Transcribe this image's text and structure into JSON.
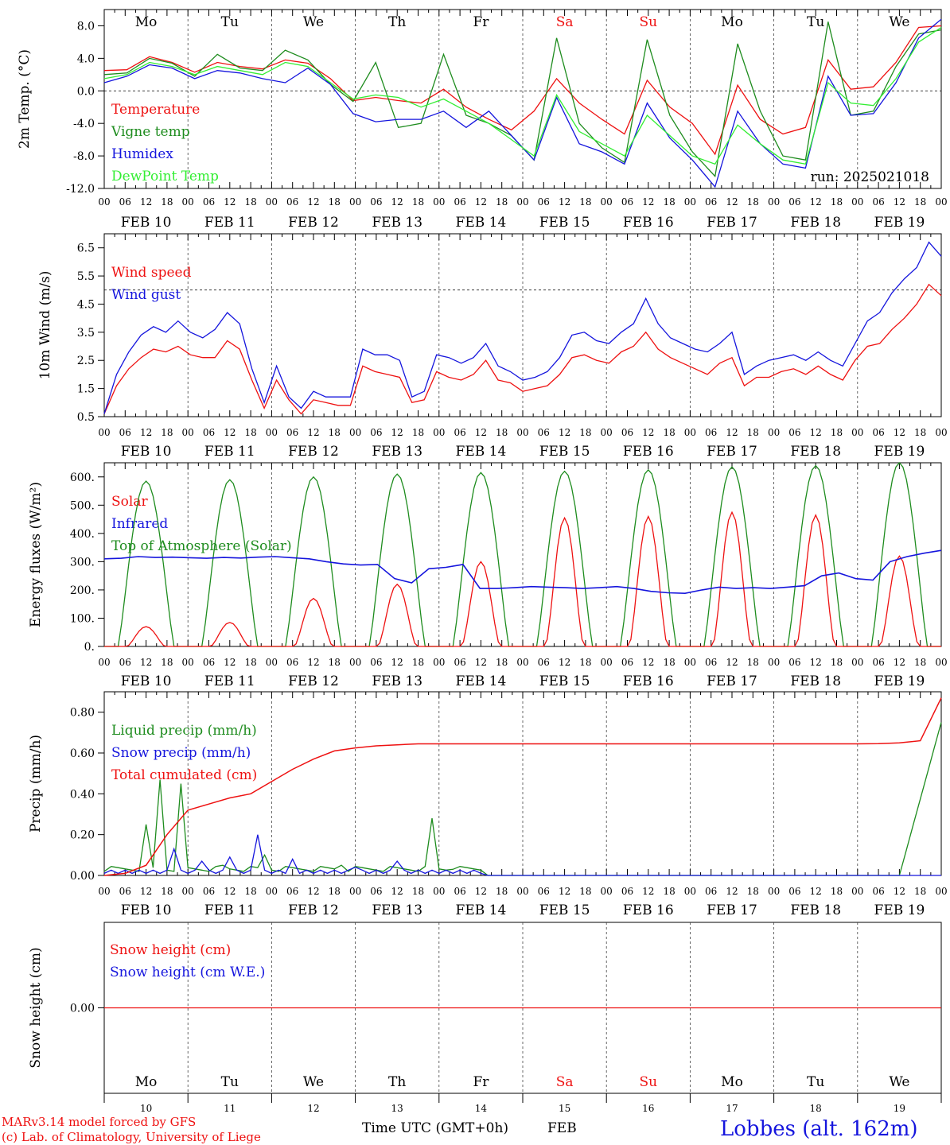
{
  "colors": {
    "red": "#ee1111",
    "darkgreen": "#1e8c1e",
    "blue": "#1515dd",
    "lightgreen": "#33ee33",
    "grid": "#444444"
  },
  "days_top": [
    {
      "label": "Mo",
      "color": "#000000"
    },
    {
      "label": "Tu",
      "color": "#000000"
    },
    {
      "label": "We",
      "color": "#000000"
    },
    {
      "label": "Th",
      "color": "#000000"
    },
    {
      "label": "Fr",
      "color": "#000000"
    },
    {
      "label": "Sa",
      "color": "#ee1111"
    },
    {
      "label": "Su",
      "color": "#ee1111"
    },
    {
      "label": "Mo",
      "color": "#000000"
    },
    {
      "label": "Tu",
      "color": "#000000"
    },
    {
      "label": "We",
      "color": "#000000"
    }
  ],
  "date_labels": [
    "FEB 10",
    "FEB 11",
    "FEB 12",
    "FEB 13",
    "FEB 14",
    "FEB 15",
    "FEB 16",
    "FEB 17",
    "FEB 18",
    "FEB 19"
  ],
  "hour_labels": [
    "00",
    "06",
    "12",
    "18"
  ],
  "final_hour_label": "00",
  "bottom_day_numbers": [
    "10",
    "11",
    "12",
    "13",
    "14",
    "15",
    "16",
    "17",
    "18",
    "19"
  ],
  "footer": {
    "model": "MARv3.14 model forced by GFS",
    "lab": "(c) Lab. of Climatology, University of Liege",
    "xlabel": "Time UTC (GMT+0h)",
    "month": "FEB",
    "station": "Lobbes (alt. 162m)"
  },
  "chart_data": [
    {
      "type": "line",
      "ylabel": "2m Temp. (°C)",
      "ylim": [
        -12,
        10
      ],
      "yticks": [
        "8.0",
        "4.0",
        "0.0",
        "-4.0",
        "-8.0",
        "-12.0"
      ],
      "ytick_values": [
        8,
        4,
        0,
        -4,
        -8,
        -12
      ],
      "reference_line": 0,
      "annotation": "run: 2025021018",
      "legend": [
        "Temperature",
        "Vigne temp",
        "Humidex",
        "DewPoint Temp"
      ],
      "x_hours": [
        0,
        6,
        12,
        18,
        24,
        30,
        36,
        42,
        48,
        54,
        60,
        66,
        72,
        78,
        84,
        90,
        96,
        102,
        108,
        114,
        120,
        126,
        132,
        138,
        144,
        150,
        156,
        162,
        168,
        174,
        180,
        186,
        192,
        198,
        204,
        210,
        216,
        222,
        228,
        234,
        240
      ],
      "series": [
        {
          "name": "Temperature",
          "color": "#ee1111",
          "values": [
            2.5,
            2.6,
            4.2,
            3.5,
            2.3,
            3.5,
            3.0,
            2.7,
            3.8,
            3.4,
            1.5,
            -1.2,
            -0.8,
            -1.2,
            -1.5,
            0.2,
            -2.0,
            -3.5,
            -4.8,
            -2.5,
            1.5,
            -1.5,
            -3.5,
            -5.3,
            1.3,
            -2.0,
            -4.0,
            -7.8,
            0.7,
            -3.5,
            -5.3,
            -4.5,
            3.8,
            0.2,
            0.5,
            3.5,
            7.8,
            8.0
          ]
        },
        {
          "name": "Vigne temp",
          "color": "#1e8c1e",
          "values": [
            2.0,
            2.2,
            4.0,
            3.4,
            1.8,
            4.5,
            2.8,
            2.5,
            5.0,
            3.8,
            0.8,
            -1.3,
            3.5,
            -4.5,
            -4.0,
            4.5,
            -3.0,
            -4.0,
            -5.5,
            -8.5,
            6.5,
            -4.0,
            -7.0,
            -8.8,
            6.3,
            -3.0,
            -7.5,
            -10.5,
            5.8,
            -2.5,
            -8.0,
            -8.5,
            8.5,
            -3.0,
            -2.5,
            3.0,
            7.0,
            7.5
          ]
        },
        {
          "name": "Humidex",
          "color": "#1515dd",
          "values": [
            1.0,
            1.8,
            3.2,
            2.8,
            1.5,
            2.5,
            2.2,
            1.5,
            1.0,
            2.8,
            0.8,
            -2.8,
            -3.8,
            -3.5,
            -3.5,
            -2.5,
            -4.5,
            -2.5,
            -5.5,
            -8.5,
            -0.8,
            -6.5,
            -7.5,
            -9.0,
            -1.5,
            -5.8,
            -8.5,
            -11.8,
            -2.5,
            -6.5,
            -9.0,
            -9.5,
            1.8,
            -3.0,
            -2.8,
            1.0,
            6.5,
            8.8
          ]
        },
        {
          "name": "DewPoint Temp",
          "color": "#33ee33",
          "values": [
            1.5,
            2.0,
            3.5,
            3.0,
            2.0,
            3.0,
            2.5,
            2.0,
            3.5,
            3.0,
            1.0,
            -1.0,
            -0.5,
            -0.8,
            -2.0,
            -1.0,
            -2.5,
            -4.0,
            -6.0,
            -8.0,
            -0.5,
            -5.0,
            -6.5,
            -8.0,
            -3.0,
            -5.5,
            -8.0,
            -9.0,
            -4.2,
            -6.5,
            -8.5,
            -9.0,
            1.0,
            -1.5,
            -1.8,
            1.5,
            6.0,
            7.8
          ]
        }
      ]
    },
    {
      "type": "line",
      "ylabel": "10m Wind (m/s)",
      "ylim": [
        0.5,
        7.0
      ],
      "yticks": [
        "6.5",
        "5.5",
        "4.5",
        "3.5",
        "2.5",
        "1.5",
        "0.5"
      ],
      "ytick_values": [
        6.5,
        5.5,
        4.5,
        3.5,
        2.5,
        1.5,
        0.5
      ],
      "reference_line": 5,
      "legend": [
        "Wind speed",
        "Wind gust"
      ],
      "series": [
        {
          "name": "Wind speed",
          "color": "#ee1111",
          "values": [
            0.6,
            1.6,
            2.2,
            2.6,
            2.9,
            2.8,
            3.0,
            2.7,
            2.6,
            2.6,
            3.2,
            2.9,
            1.8,
            0.8,
            1.8,
            1.1,
            0.6,
            1.1,
            1.0,
            0.9,
            0.9,
            2.3,
            2.1,
            2.0,
            1.9,
            1.0,
            1.1,
            2.1,
            1.9,
            1.8,
            2.0,
            2.5,
            1.8,
            1.7,
            1.4,
            1.5,
            1.6,
            2.0,
            2.6,
            2.7,
            2.5,
            2.4,
            2.8,
            3.0,
            3.5,
            2.9,
            2.6,
            2.4,
            2.2,
            2.0,
            2.4,
            2.6,
            1.6,
            1.9,
            1.9,
            2.1,
            2.2,
            2.0,
            2.3,
            2.0,
            1.8,
            2.5,
            3.0,
            3.1,
            3.6,
            4.0,
            4.5,
            5.2,
            4.8
          ]
        },
        {
          "name": "Wind gust",
          "color": "#1515dd",
          "values": [
            0.6,
            2.0,
            2.8,
            3.4,
            3.7,
            3.5,
            3.9,
            3.5,
            3.3,
            3.6,
            4.2,
            3.8,
            2.2,
            1.0,
            2.3,
            1.2,
            0.8,
            1.4,
            1.2,
            1.2,
            1.2,
            2.9,
            2.7,
            2.7,
            2.5,
            1.2,
            1.4,
            2.7,
            2.6,
            2.4,
            2.6,
            3.1,
            2.3,
            2.1,
            1.8,
            1.9,
            2.1,
            2.6,
            3.4,
            3.5,
            3.2,
            3.1,
            3.5,
            3.8,
            4.7,
            3.8,
            3.3,
            3.1,
            2.9,
            2.8,
            3.1,
            3.5,
            2.0,
            2.3,
            2.5,
            2.6,
            2.7,
            2.5,
            2.8,
            2.5,
            2.3,
            3.1,
            3.9,
            4.2,
            4.9,
            5.4,
            5.8,
            6.7,
            6.2
          ]
        }
      ]
    },
    {
      "type": "line",
      "ylabel": "Energy fluxes (W/m²)",
      "ylim": [
        0,
        650
      ],
      "yticks": [
        "600.",
        "500.",
        "400.",
        "300.",
        "200.",
        "100.",
        "0."
      ],
      "ytick_values": [
        600,
        500,
        400,
        300,
        200,
        100,
        0
      ],
      "legend": [
        "Solar",
        "Infrared",
        "Top of Atmosphere (Solar)"
      ],
      "solar_peaks": [
        70,
        85,
        170,
        220,
        300,
        455,
        460,
        475,
        465,
        320
      ],
      "toa_peaks": [
        585,
        590,
        600,
        610,
        615,
        620,
        625,
        635,
        640,
        650
      ],
      "infrared_values": [
        310,
        312,
        318,
        315,
        316,
        314,
        312,
        315,
        313,
        316,
        318,
        314,
        310,
        300,
        292,
        288,
        290,
        240,
        225,
        275,
        280,
        290,
        205,
        205,
        208,
        212,
        210,
        208,
        205,
        208,
        212,
        205,
        195,
        190,
        188,
        200,
        210,
        205,
        208,
        205,
        210,
        215,
        250,
        260,
        240,
        235,
        300,
        318,
        330,
        340
      ]
    },
    {
      "type": "line",
      "ylabel": "Precip (mm/h)",
      "ylim": [
        0,
        0.9
      ],
      "yticks": [
        "0.80",
        "0.60",
        "0.40",
        "0.20",
        "0.00"
      ],
      "ytick_values": [
        0.8,
        0.6,
        0.4,
        0.2,
        0.0
      ],
      "legend": [
        "Liquid precip (mm/h)",
        "Snow precip (mm/h)",
        "Total cumulated (cm)"
      ],
      "cumulative": [
        0.0,
        0.01,
        0.05,
        0.2,
        0.32,
        0.35,
        0.38,
        0.4,
        0.46,
        0.52,
        0.57,
        0.61,
        0.625,
        0.635,
        0.64,
        0.645,
        0.645,
        0.645,
        0.645,
        0.645,
        0.645,
        0.645,
        0.645,
        0.645,
        0.645,
        0.645,
        0.645,
        0.645,
        0.645,
        0.645,
        0.645,
        0.645,
        0.645,
        0.645,
        0.645,
        0.645,
        0.645,
        0.646,
        0.65,
        0.66,
        0.87
      ]
    },
    {
      "type": "line",
      "ylabel": "Snow height (cm)",
      "ylim": [
        -1,
        1
      ],
      "yticks": [
        "0.00"
      ],
      "ytick_values": [
        0
      ],
      "legend": [
        "Snow height (cm)",
        "Snow height (cm W.E.)"
      ],
      "values": [
        0.0,
        0.0
      ]
    }
  ]
}
